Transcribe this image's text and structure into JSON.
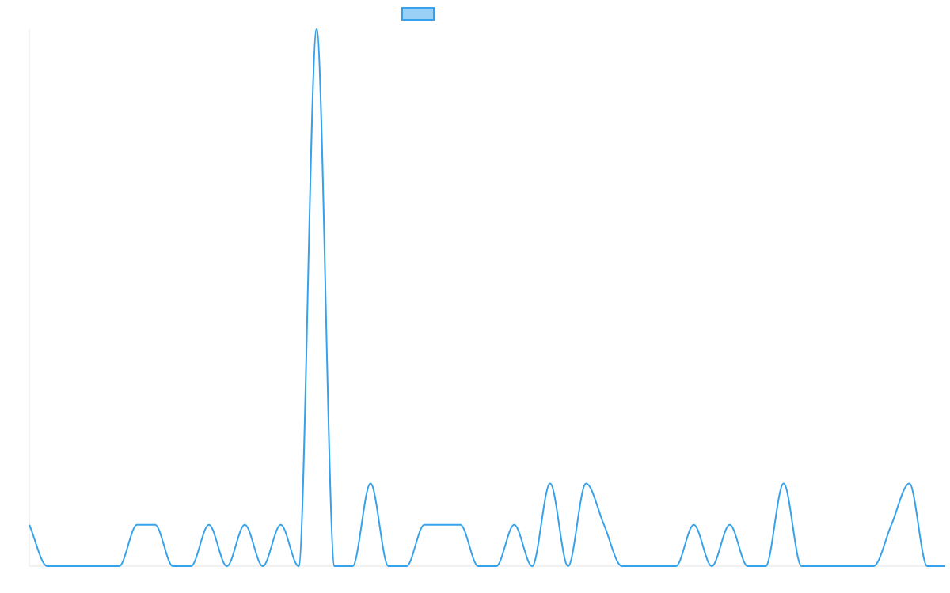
{
  "chart_data": {
    "type": "line",
    "title": "",
    "xlabel": "",
    "ylabel": "",
    "grid": false,
    "legend": {
      "position": "top-center",
      "entries": [
        {
          "label": "",
          "fill": "#9ad0f5",
          "stroke": "#36a2eb"
        }
      ]
    },
    "x": [
      0,
      1,
      2,
      3,
      4,
      5,
      6,
      7,
      8,
      9,
      10,
      11,
      12,
      13,
      14,
      15,
      16,
      17,
      18,
      19,
      20,
      21,
      22,
      23,
      24,
      25,
      26,
      27,
      28,
      29,
      30,
      31,
      32,
      33,
      34,
      35,
      36,
      37,
      38,
      39,
      40,
      41,
      42,
      43,
      44,
      45,
      46,
      47,
      48,
      49,
      50,
      51
    ],
    "xlim": [
      0,
      51
    ],
    "ylim": [
      0,
      13
    ],
    "series": [
      {
        "name": "",
        "color": "#36a2eb",
        "values": [
          1,
          0,
          0,
          0,
          0,
          0,
          1,
          1,
          0,
          0,
          1,
          0,
          1,
          0,
          1,
          0,
          13,
          0,
          0,
          2,
          0,
          0,
          1,
          1,
          1,
          0,
          0,
          1,
          0,
          2,
          0,
          2,
          1,
          0,
          0,
          0,
          0,
          1,
          0,
          1,
          0,
          0,
          2,
          0,
          0,
          0,
          0,
          0,
          1,
          2,
          0,
          0
        ]
      }
    ]
  }
}
